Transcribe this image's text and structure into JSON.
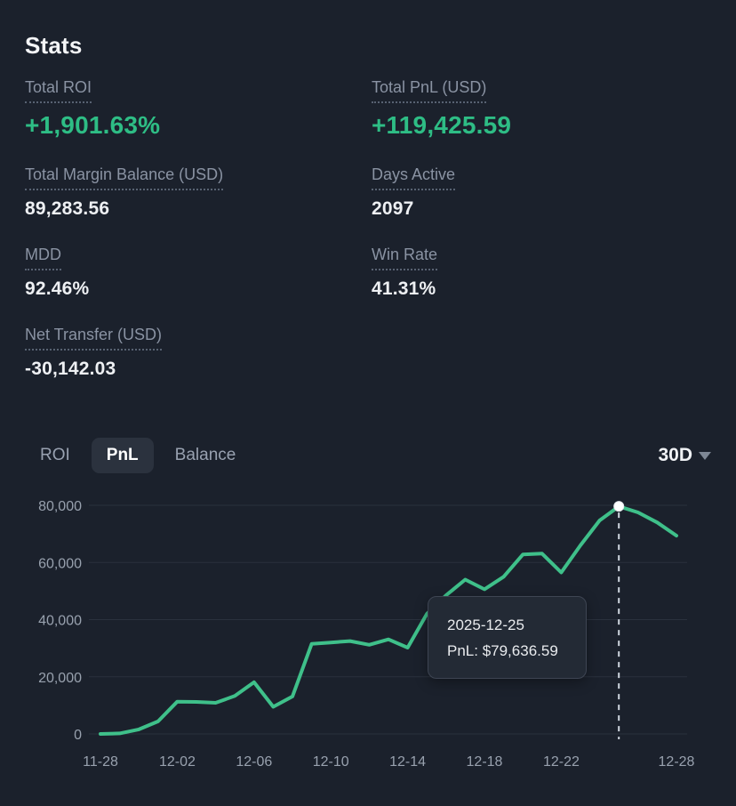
{
  "page": {
    "title": "Stats"
  },
  "stats": {
    "items": [
      {
        "label": "Total ROI",
        "value": "+1,901.63%",
        "positive": true
      },
      {
        "label": "Total PnL (USD)",
        "value": "+119,425.59",
        "positive": true
      },
      {
        "label": "Total Margin Balance (USD)",
        "value": "89,283.56",
        "positive": false
      },
      {
        "label": "Days Active",
        "value": "2097",
        "positive": false
      },
      {
        "label": "MDD",
        "value": "92.46%",
        "positive": false
      },
      {
        "label": "Win Rate",
        "value": "41.31%",
        "positive": false
      },
      {
        "label": "Net Transfer (USD)",
        "value": "-30,142.03",
        "positive": false
      }
    ]
  },
  "chart_tabs": {
    "items": [
      {
        "label": "ROI",
        "active": false
      },
      {
        "label": "PnL",
        "active": true
      },
      {
        "label": "Balance",
        "active": false
      }
    ],
    "range_label": "30D"
  },
  "tooltip": {
    "date": "2025-12-25",
    "pnl": "PnL: $79,636.59"
  },
  "chart_data": {
    "type": "line",
    "title": "PnL (USD) — last 30 days",
    "x": [
      "11-28",
      "11-29",
      "11-30",
      "12-01",
      "12-02",
      "12-03",
      "12-04",
      "12-05",
      "12-06",
      "12-07",
      "12-08",
      "12-09",
      "12-10",
      "12-11",
      "12-12",
      "12-13",
      "12-14",
      "12-15",
      "12-16",
      "12-17",
      "12-18",
      "12-19",
      "12-20",
      "12-21",
      "12-22",
      "12-23",
      "12-24",
      "12-25",
      "12-26",
      "12-27",
      "12-28"
    ],
    "values": [
      0,
      200,
      1600,
      4400,
      11300,
      11200,
      10900,
      13300,
      18100,
      9500,
      13100,
      31500,
      32000,
      32500,
      31200,
      33100,
      30200,
      42000,
      48500,
      54000,
      50600,
      55000,
      62800,
      63100,
      56500,
      66000,
      74700,
      79636.59,
      77500,
      74000,
      69400
    ],
    "highlight": {
      "x": "12-25",
      "value": 79636.59
    },
    "ylim": [
      0,
      80000
    ],
    "yticks": [
      0,
      20000,
      40000,
      60000,
      80000
    ],
    "ytick_labels": [
      "0",
      "20,000",
      "40,000",
      "60,000",
      "80,000"
    ],
    "xtick_labels": [
      "11-28",
      "12-02",
      "12-06",
      "12-10",
      "12-14",
      "12-18",
      "12-22",
      "12-28"
    ],
    "xtick_day_offsets": [
      0,
      4,
      8,
      12,
      16,
      20,
      24,
      30
    ],
    "grid": "horizontal",
    "legend": "none",
    "colors": {
      "line": "#3fc08a",
      "accent_green": "#2ebd85",
      "background": "#1b212c",
      "grid_line": "#2a313d",
      "axis_text": "#98a1ae",
      "highlight_dash": "#cfd6df",
      "highlight_dot": "#ffffff"
    }
  }
}
